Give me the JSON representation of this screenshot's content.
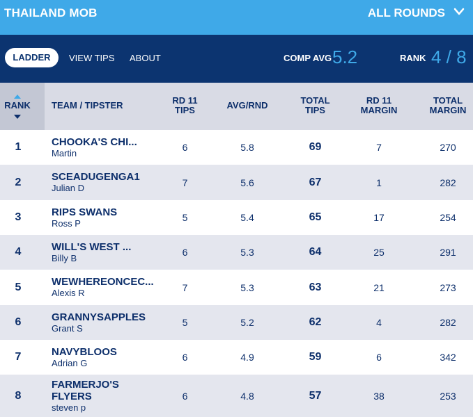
{
  "header": {
    "title": "THAILAND MOB",
    "rounds_label": "ALL ROUNDS",
    "chevron_icon": "chevron-down-icon"
  },
  "nav": {
    "tabs": [
      {
        "label": "LADDER",
        "active": true
      },
      {
        "label": "VIEW TIPS",
        "active": false
      },
      {
        "label": "ABOUT",
        "active": false
      }
    ],
    "comp_avg_label": "COMP AVG",
    "comp_avg_value": "5.2",
    "rank_label": "RANK",
    "rank_value": "4 / 8"
  },
  "table": {
    "columns": {
      "rank": "RANK",
      "team": "TEAM / TIPSTER",
      "rd_tips": [
        "RD 11",
        "TIPS"
      ],
      "avg": "AVG/RND",
      "total_tips": [
        "TOTAL",
        "TIPS"
      ],
      "rd_margin": [
        "RD 11",
        "MARGIN"
      ],
      "total_margin": [
        "TOTAL",
        "MARGIN"
      ]
    },
    "rows": [
      {
        "rank": "1",
        "team": [
          "CHOOKA'S CHI..."
        ],
        "tipster": "Martin",
        "rd_tips": "6",
        "avg": "5.8",
        "total_tips": "69",
        "rd_margin": "7",
        "total_margin": "270"
      },
      {
        "rank": "2",
        "team": [
          "SCEADUGENGA1"
        ],
        "tipster": "Julian D",
        "rd_tips": "7",
        "avg": "5.6",
        "total_tips": "67",
        "rd_margin": "1",
        "total_margin": "282"
      },
      {
        "rank": "3",
        "team": [
          "RIPS SWANS"
        ],
        "tipster": "Ross P",
        "rd_tips": "5",
        "avg": "5.4",
        "total_tips": "65",
        "rd_margin": "17",
        "total_margin": "254"
      },
      {
        "rank": "4",
        "team": [
          "WILL'S WEST ..."
        ],
        "tipster": "Billy B",
        "rd_tips": "6",
        "avg": "5.3",
        "total_tips": "64",
        "rd_margin": "25",
        "total_margin": "291"
      },
      {
        "rank": "5",
        "team": [
          "WEWHEREONCEC..."
        ],
        "tipster": "Alexis R",
        "rd_tips": "7",
        "avg": "5.3",
        "total_tips": "63",
        "rd_margin": "21",
        "total_margin": "273"
      },
      {
        "rank": "6",
        "team": [
          "GRANNYSAPPLES"
        ],
        "tipster": "Grant S",
        "rd_tips": "5",
        "avg": "5.2",
        "total_tips": "62",
        "rd_margin": "4",
        "total_margin": "282"
      },
      {
        "rank": "7",
        "team": [
          "NAVYBLOOS"
        ],
        "tipster": "Adrian G",
        "rd_tips": "6",
        "avg": "4.9",
        "total_tips": "59",
        "rd_margin": "6",
        "total_margin": "342"
      },
      {
        "rank": "8",
        "team": [
          "FARMERJO'S",
          "FLYERS"
        ],
        "tipster": "steven p",
        "rd_tips": "6",
        "avg": "4.8",
        "total_tips": "57",
        "rd_margin": "38",
        "total_margin": "253"
      }
    ]
  },
  "colors": {
    "top_bar": "#3fa9e8",
    "nav_bar": "#0c3470",
    "accent_value": "#3fa9e8",
    "header_bg": "#d9dbe5",
    "rank_header_bg": "#c3c7d4",
    "alt_row": "#e4e6ee",
    "text": "#0d2f6b"
  }
}
